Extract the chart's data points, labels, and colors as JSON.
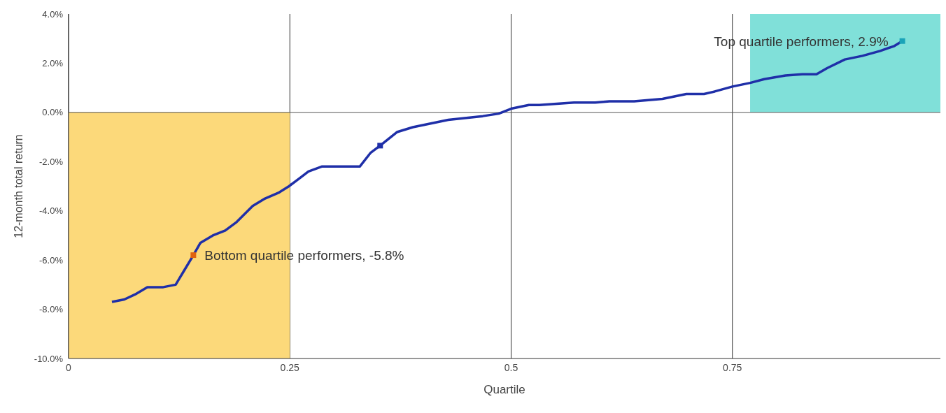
{
  "chart_data": {
    "type": "line",
    "xlabel": "Quartile",
    "ylabel": "12-month total return",
    "xlim": [
      0,
      0.985
    ],
    "xticks": [
      0,
      0.25,
      0.5,
      0.75
    ],
    "ylim": [
      -10,
      4
    ],
    "yticks": [
      {
        "value": -10,
        "label": "-10.0%"
      },
      {
        "value": -8,
        "label": "-8.0%"
      },
      {
        "value": -6,
        "label": "-6.0%"
      },
      {
        "value": -4,
        "label": "-4.0%"
      },
      {
        "value": -2,
        "label": "-2.0%"
      },
      {
        "value": 0,
        "label": "0.0%"
      },
      {
        "value": 2,
        "label": "2.0%"
      },
      {
        "value": 4,
        "label": "4.0%"
      }
    ],
    "grid": "x",
    "bands": [
      {
        "axis": "x",
        "from": 0,
        "to": 0.25,
        "color": "#fcd97a"
      },
      {
        "axis": "x",
        "from": 0.77,
        "to": 0.985,
        "color": "#80e0d9"
      }
    ],
    "ref_lines": [
      {
        "axis": "y",
        "value": 0,
        "color": "#555555"
      }
    ],
    "series": [
      {
        "color": "#1f2fa8",
        "marker": "none",
        "x": [
          0.049,
          0.063,
          0.075,
          0.089,
          0.107,
          0.121,
          0.131,
          0.141,
          0.149,
          0.163,
          0.177,
          0.19,
          0.208,
          0.222,
          0.238,
          0.249,
          0.262,
          0.271,
          0.286,
          0.302,
          0.329,
          0.341,
          0.352,
          0.371,
          0.389,
          0.429,
          0.468,
          0.486,
          0.5,
          0.52,
          0.532,
          0.571,
          0.595,
          0.611,
          0.639,
          0.671,
          0.698,
          0.718,
          0.73,
          0.75,
          0.77,
          0.786,
          0.81,
          0.829,
          0.845,
          0.857,
          0.877,
          0.897,
          0.917,
          0.933,
          0.942
        ],
        "values": [
          -7.7,
          -7.6,
          -7.4,
          -7.1,
          -7.1,
          -7.0,
          -6.4,
          -5.8,
          -5.3,
          -5.0,
          -4.8,
          -4.45,
          -3.8,
          -3.5,
          -3.25,
          -3.0,
          -2.65,
          -2.4,
          -2.2,
          -2.2,
          -2.2,
          -1.65,
          -1.35,
          -0.8,
          -0.6,
          -0.3,
          -0.15,
          -0.05,
          0.15,
          0.3,
          0.3,
          0.4,
          0.4,
          0.45,
          0.45,
          0.55,
          0.75,
          0.75,
          0.85,
          1.05,
          1.2,
          1.35,
          1.5,
          1.55,
          1.55,
          1.8,
          2.15,
          2.3,
          2.5,
          2.7,
          2.9
        ]
      },
      {
        "type": "scatter",
        "color": "#e0620f",
        "marker": "square",
        "x": [
          0.141
        ],
        "values": [
          -5.8
        ]
      },
      {
        "type": "scatter",
        "color": "#1f2fa8",
        "marker": "square",
        "x": [
          0.352
        ],
        "values": [
          -1.35
        ]
      },
      {
        "type": "scatter",
        "color": "#1aa3b8",
        "marker": "square",
        "x": [
          0.942
        ],
        "values": [
          2.9
        ]
      }
    ],
    "annotations": [
      {
        "text": "Top quartile performers, 2.9%",
        "x": 0.942,
        "y": 2.9
      },
      {
        "text": "Bottom quartile performers, -5.8%",
        "x": 0.141,
        "y": -5.8
      }
    ]
  }
}
